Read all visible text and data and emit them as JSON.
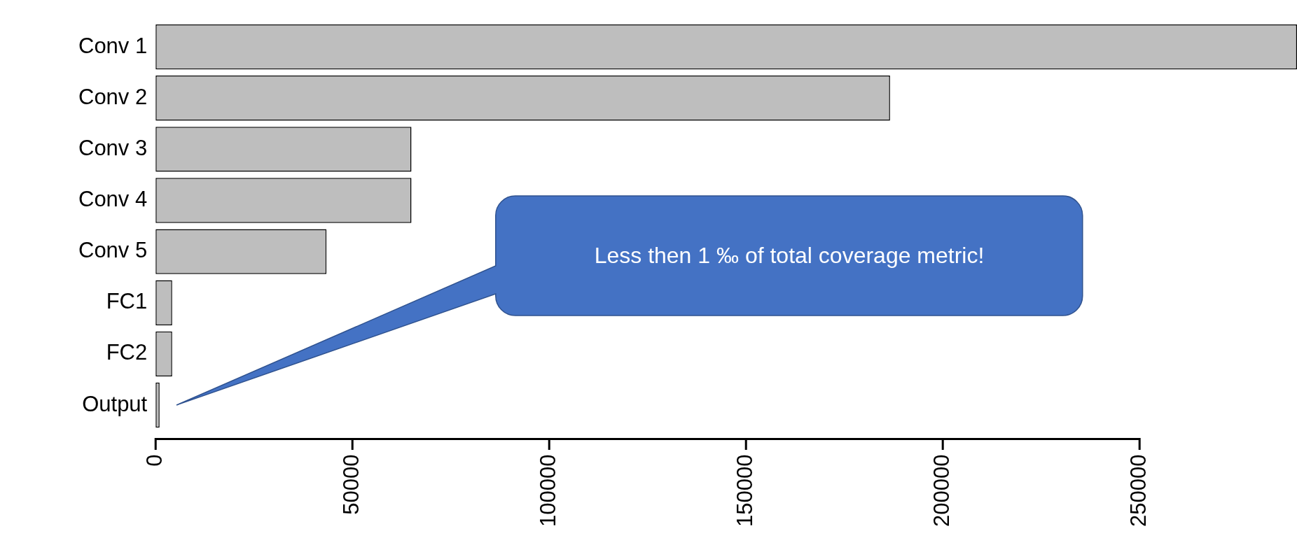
{
  "chart_data": {
    "type": "bar",
    "orientation": "horizontal",
    "categories": [
      "Conv 1",
      "Conv 2",
      "Conv 3",
      "Conv 4",
      "Conv 5",
      "FC1",
      "FC2",
      "Output"
    ],
    "values": [
      290000,
      186600,
      65000,
      65000,
      43400,
      4200,
      4200,
      1000
    ],
    "color": "#bebebe",
    "xlim": [
      0,
      290000
    ],
    "xticks": [
      0,
      50000,
      100000,
      150000,
      200000,
      250000
    ],
    "grid": false,
    "legend": false,
    "annotations": [
      "Less then 1 ‰ of total coverage metric!"
    ]
  }
}
